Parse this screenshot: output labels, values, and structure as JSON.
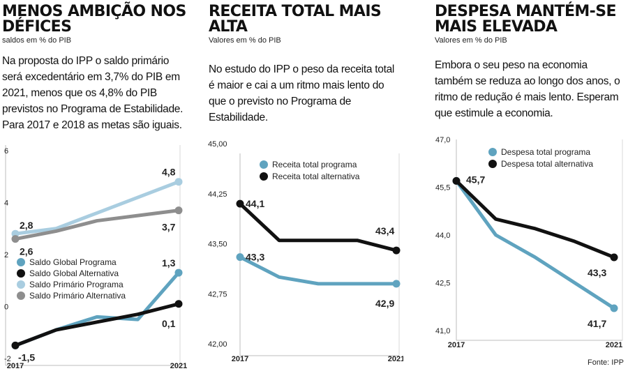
{
  "charts": {
    "deficit": {
      "title": "MENOS AMBIÇÃO NOS DÉFICES",
      "subtitle": "saldos em % do PIB",
      "text": "Na proposta do IPP o saldo primário será excedentário em 3,7% do PIB em 2021, menos que os 4,8% do PIB previstos no Programa de Estabilidade. Para 2017 e 2018 as metas são iguais."
    },
    "receita": {
      "title": "RECEITA TOTAL MAIS ALTA",
      "subtitle": "Valores em % do PIB",
      "text": "No estudo do IPP o peso da receita total é maior e cai a um ritmo mais lento do que o previsto no Programa de Estabilidade."
    },
    "despesa": {
      "title": "DESPESA MANTÉM-SE MAIS ELEVADA",
      "subtitle": "Valores em % do PIB",
      "text": "Embora o seu peso na economia também se reduza ao longo dos anos, o ritmo de redução é mais lento. Esperam que estimule a economia."
    }
  },
  "source": "Fonte: IPP",
  "colors": {
    "programa": "#5fa3bf",
    "alternativa": "#111111",
    "primario_programa": "#a9cde0",
    "primario_alternativa": "#8e8e8e"
  },
  "chart_data": [
    {
      "type": "line",
      "x": [
        2017,
        2018,
        2019,
        2020,
        2021
      ],
      "x_tick_labels": [
        "2017",
        "2021"
      ],
      "y_ticks": [
        "-2",
        "0",
        "2",
        "4",
        "6"
      ],
      "ylim": [
        -2,
        6
      ],
      "grid": false,
      "legend_position": "bottom-left",
      "series": [
        {
          "name": "Saldo Global Programa",
          "color": "#5fa3bf",
          "values": [
            -1.5,
            -0.9,
            -0.4,
            -0.5,
            1.3
          ],
          "labels": [
            "-1,5",
            "",
            "",
            "",
            "1,3"
          ]
        },
        {
          "name": "Saldo Global Alternativa",
          "color": "#111111",
          "values": [
            -1.5,
            -0.9,
            -0.6,
            -0.3,
            0.1
          ],
          "labels": [
            "",
            "",
            "",
            "",
            "0,1"
          ]
        },
        {
          "name": "Saldo Primário Programa",
          "color": "#a9cde0",
          "values": [
            2.8,
            3.0,
            3.6,
            4.2,
            4.8
          ],
          "labels": [
            "2,8",
            "",
            "",
            "",
            "4,8"
          ]
        },
        {
          "name": "Saldo Primário Alternativa",
          "color": "#8e8e8e",
          "values": [
            2.6,
            2.9,
            3.3,
            3.5,
            3.7
          ],
          "labels": [
            "2,6",
            "",
            "",
            "",
            "3,7"
          ]
        }
      ]
    },
    {
      "type": "line",
      "x": [
        2017,
        2018,
        2019,
        2020,
        2021
      ],
      "x_tick_labels": [
        "2017",
        "2021"
      ],
      "y_ticks": [
        "42,00",
        "42,75",
        "43,50",
        "44,25",
        "45,00"
      ],
      "ylim": [
        42,
        45
      ],
      "grid": false,
      "legend_position": "top-right",
      "series": [
        {
          "name": "Receita total programa",
          "color": "#5fa3bf",
          "values": [
            43.3,
            43.0,
            42.9,
            42.9,
            42.9
          ],
          "labels": [
            "43,3",
            "",
            "",
            "",
            "42,9"
          ]
        },
        {
          "name": "Receita total alternativa",
          "color": "#111111",
          "values": [
            44.1,
            43.55,
            43.55,
            43.55,
            43.4
          ],
          "labels": [
            "44,1",
            "",
            "",
            "",
            "43,4"
          ]
        }
      ]
    },
    {
      "type": "line",
      "x": [
        2017,
        2018,
        2019,
        2020,
        2021
      ],
      "x_tick_labels": [
        "2017",
        "2021"
      ],
      "y_ticks": [
        "41,0",
        "42,5",
        "44,0",
        "45,5",
        "47,0"
      ],
      "ylim": [
        41,
        47
      ],
      "grid": false,
      "legend_position": "top-right",
      "series": [
        {
          "name": "Despesa total programa",
          "color": "#5fa3bf",
          "values": [
            45.7,
            44.0,
            43.3,
            42.5,
            41.7
          ],
          "labels": [
            "",
            "",
            "",
            "",
            "41,7"
          ]
        },
        {
          "name": "Despesa total alternativa",
          "color": "#111111",
          "values": [
            45.7,
            44.5,
            44.2,
            43.8,
            43.3
          ],
          "labels": [
            "45,7",
            "",
            "",
            "",
            "43,3"
          ]
        }
      ]
    }
  ]
}
